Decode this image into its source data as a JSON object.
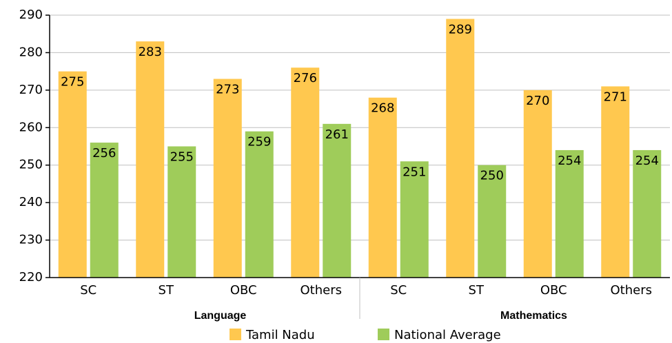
{
  "chart_data": {
    "type": "bar",
    "groups": [
      {
        "name": "Language",
        "categories": [
          "SC",
          "ST",
          "OBC",
          "Others"
        ]
      },
      {
        "name": "Mathematics",
        "categories": [
          "SC",
          "ST",
          "OBC",
          "Others"
        ]
      }
    ],
    "series": [
      {
        "name": "Tamil Nadu",
        "color": "#ffc84f",
        "values": [
          275,
          283,
          273,
          276,
          268,
          289,
          270,
          271
        ]
      },
      {
        "name": "National Average",
        "color": "#9fcc5a",
        "values": [
          256,
          255,
          259,
          261,
          251,
          250,
          254,
          254
        ]
      }
    ],
    "ylim": [
      220,
      290
    ],
    "yticks": [
      220,
      230,
      240,
      250,
      260,
      270,
      280,
      290
    ],
    "grid": true,
    "legend": "bottom"
  }
}
